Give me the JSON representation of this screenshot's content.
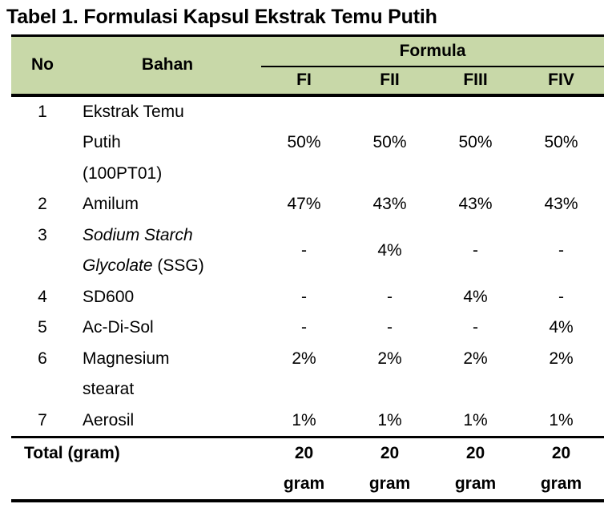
{
  "caption": "Tabel 1. Formulasi Kapsul Ekstrak Temu Putih",
  "colors": {
    "header_bg": "#c8d8a8",
    "rule": "#000000",
    "page_bg": "#ffffff"
  },
  "table": {
    "headers": {
      "no": "No",
      "bahan": "Bahan",
      "formula_group": "Formula",
      "formulas": [
        "FI",
        "FII",
        "FIII",
        "FIV"
      ]
    },
    "rows": [
      {
        "no": "1",
        "name": "Ekstrak Temu\nPutih\n(100PT01)",
        "values": [
          "50%",
          "50%",
          "50%",
          "50%"
        ]
      },
      {
        "no": "2",
        "name": "Amilum",
        "values": [
          "47%",
          "43%",
          "43%",
          "43%"
        ]
      },
      {
        "no": "3",
        "name_italic": "Sodium Starch\nGlycolate",
        "name_regular": " (SSG)",
        "values": [
          "-",
          "4%",
          "-",
          "-"
        ]
      },
      {
        "no": "4",
        "name": "SD600",
        "values": [
          "-",
          "-",
          "4%",
          "-"
        ]
      },
      {
        "no": "5",
        "name": "Ac-Di-Sol",
        "values": [
          "-",
          "-",
          "-",
          "4%"
        ]
      },
      {
        "no": "6",
        "name": "Magnesium\nstearat",
        "values": [
          "2%",
          "2%",
          "2%",
          "2%"
        ]
      },
      {
        "no": "7",
        "name": "Aerosil",
        "values": [
          "1%",
          "1%",
          "1%",
          "1%"
        ]
      }
    ],
    "footer": {
      "label": "Total (gram)",
      "values": [
        "20\ngram",
        "20\ngram",
        "20\ngram",
        "20\ngram"
      ]
    }
  }
}
